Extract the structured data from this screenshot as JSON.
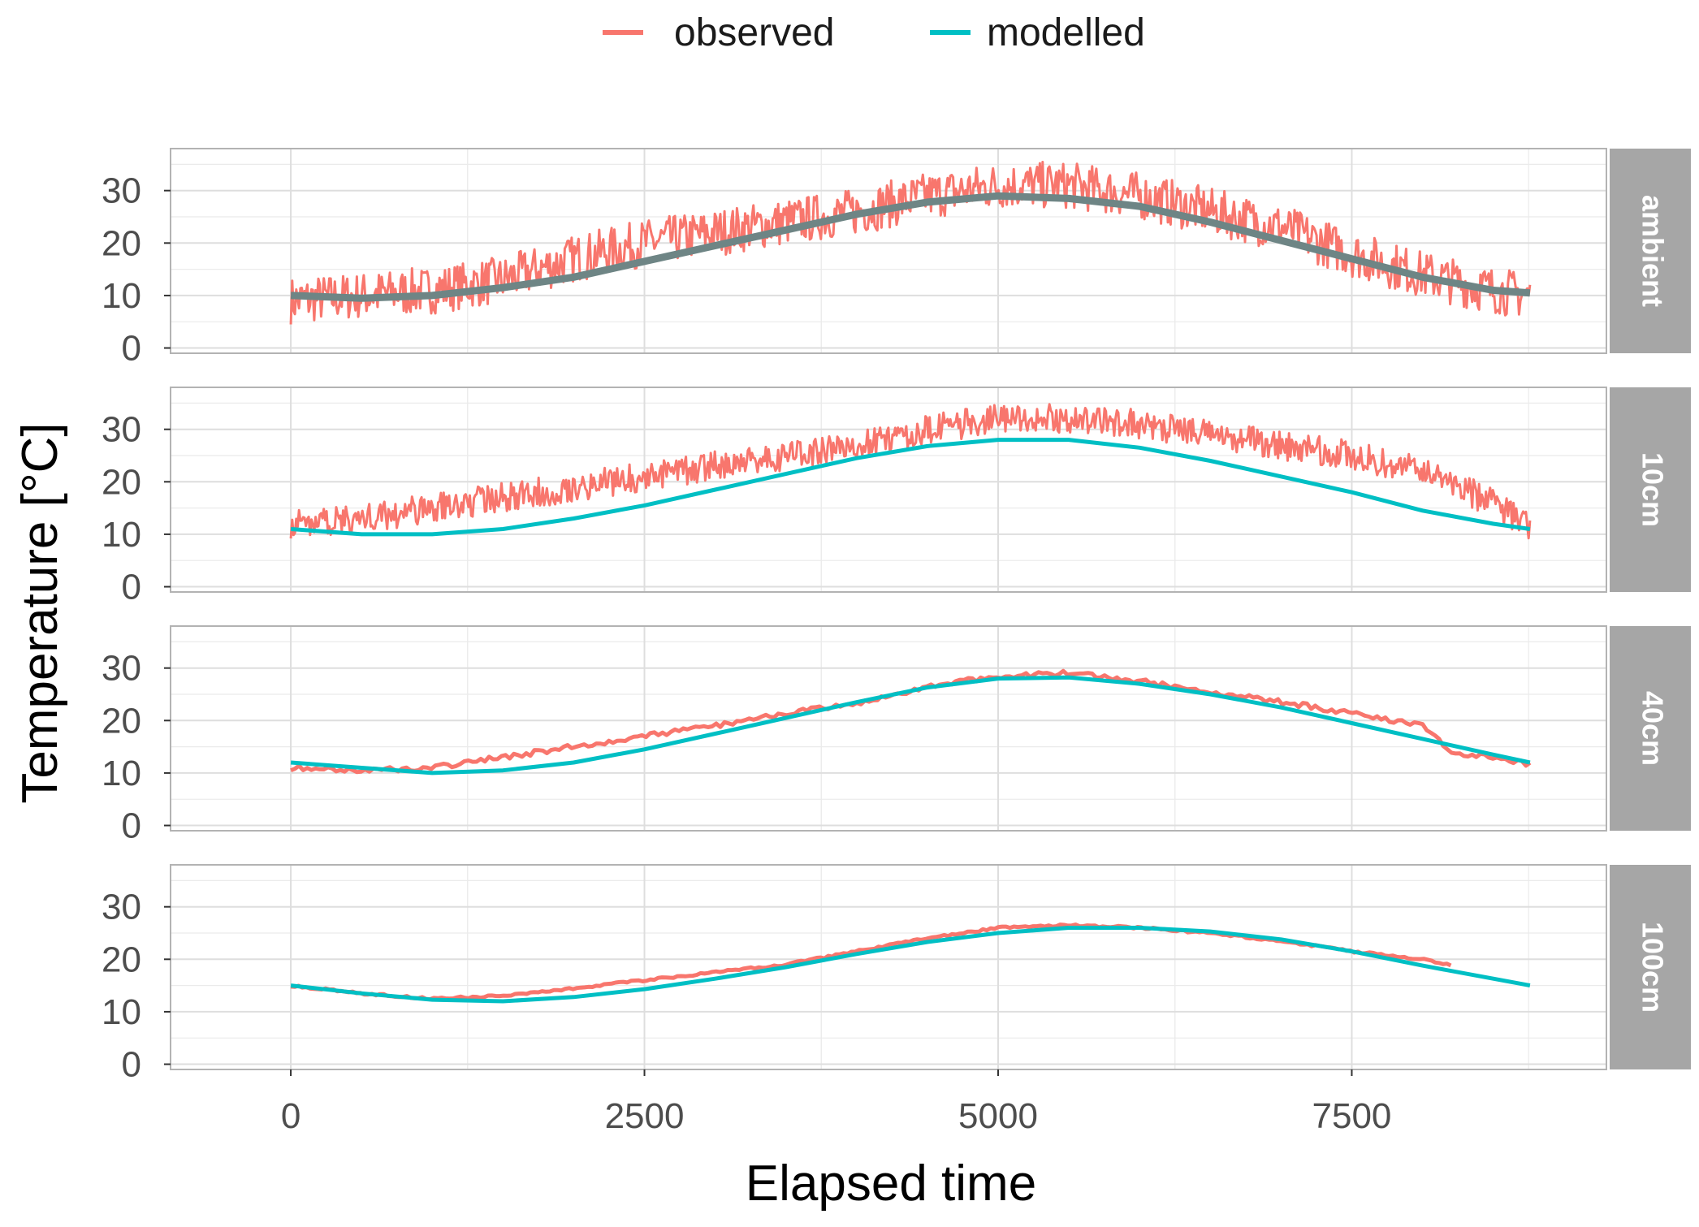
{
  "chart_data": {
    "type": "line",
    "xlabel": "Elapsed time",
    "ylabel": "Temperature [°C]",
    "xlim": [
      -850,
      9300
    ],
    "ylim": [
      -1,
      38
    ],
    "x_ticks": [
      0,
      2500,
      5000,
      7500
    ],
    "x_tick_labels": [
      "0",
      "2500",
      "5000",
      "7500"
    ],
    "y_ticks": [
      0,
      10,
      20,
      30
    ],
    "y_tick_labels": [
      "0",
      "10",
      "20",
      "30"
    ],
    "grid": true,
    "legend": {
      "position": "top",
      "entries": [
        {
          "label": "observed",
          "color": "#f8766d"
        },
        {
          "label": "modelled",
          "color": "#00bfc4"
        }
      ]
    },
    "colors": {
      "observed": "#f8766d",
      "modelled": "#00bfc4",
      "strip": "#a6a6a6",
      "grid": "#ebebeb",
      "panel_border": "#b3b3b3"
    },
    "panels": [
      {
        "label": "ambient",
        "noise_amplitude": 4.5,
        "observed": {
          "x": [
            0,
            500,
            1000,
            1500,
            2000,
            2500,
            3000,
            3500,
            4000,
            4500,
            5000,
            5500,
            6000,
            6500,
            7000,
            7500,
            8000,
            8500,
            8760
          ],
          "y": [
            9,
            10,
            11,
            13,
            17,
            20,
            22,
            24,
            26,
            29,
            31,
            31,
            29,
            26,
            23,
            18,
            14,
            11,
            10
          ]
        },
        "modelled": {
          "x": [
            0,
            500,
            1000,
            1500,
            2000,
            2500,
            3000,
            3500,
            4000,
            4500,
            5000,
            5500,
            6000,
            6500,
            7000,
            7500,
            8000,
            8500,
            8760
          ],
          "y": [
            10,
            9.5,
            10,
            11.5,
            13.5,
            16.5,
            19.5,
            22.5,
            25.5,
            27.8,
            29,
            28.5,
            27,
            24,
            20.5,
            17,
            13.5,
            11,
            10.5
          ]
        }
      },
      {
        "label": "10cm",
        "noise_amplitude": 2.8,
        "observed": {
          "x": [
            0,
            500,
            1000,
            1500,
            2000,
            2500,
            3000,
            3500,
            4000,
            4500,
            5000,
            5500,
            6000,
            6500,
            7000,
            7500,
            8000,
            8500,
            8760
          ],
          "y": [
            12,
            13,
            15,
            17,
            19,
            21,
            23,
            25,
            27,
            30,
            32,
            32,
            31,
            29,
            27,
            25,
            22,
            16,
            11
          ]
        },
        "modelled": {
          "x": [
            0,
            500,
            1000,
            1500,
            2000,
            2500,
            3000,
            3500,
            4000,
            4500,
            5000,
            5500,
            6000,
            6500,
            7000,
            7500,
            8000,
            8500,
            8760
          ],
          "y": [
            11,
            10,
            10,
            11,
            13,
            15.5,
            18.5,
            21.5,
            24.5,
            26.8,
            28,
            28,
            26.5,
            24,
            21,
            18,
            14.5,
            12,
            11
          ]
        }
      },
      {
        "label": "40cm",
        "noise_amplitude": 0.5,
        "observed": {
          "x": [
            0,
            500,
            1000,
            1500,
            2000,
            2500,
            3000,
            3500,
            4000,
            4500,
            5000,
            5500,
            6000,
            6500,
            7000,
            7500,
            8000,
            8200,
            8500,
            8760
          ],
          "y": [
            11,
            10.5,
            11,
            13,
            15,
            17,
            19,
            21.5,
            23,
            26.5,
            28.5,
            29,
            27.5,
            25.5,
            23.5,
            21.5,
            19,
            14,
            13,
            11.5
          ]
        },
        "modelled": {
          "x": [
            0,
            500,
            1000,
            1500,
            2000,
            2500,
            3000,
            3500,
            4000,
            4500,
            5000,
            5500,
            6000,
            6500,
            7000,
            7500,
            8000,
            8500,
            8760
          ],
          "y": [
            12,
            11,
            10,
            10.5,
            12,
            14.5,
            17.5,
            20.5,
            23.5,
            26.3,
            28,
            28.2,
            27,
            25,
            22.5,
            19.5,
            16.5,
            13.5,
            12
          ]
        }
      },
      {
        "label": "100cm",
        "noise_amplitude": 0.2,
        "observed": {
          "x": [
            0,
            500,
            1000,
            1500,
            2000,
            2500,
            3000,
            3500,
            4000,
            4500,
            5000,
            5500,
            6000,
            6500,
            7000,
            7500,
            8000,
            8200
          ],
          "y": [
            15,
            13.5,
            12.5,
            13,
            14.5,
            16,
            17.5,
            19,
            21.5,
            24,
            26,
            26.5,
            26,
            25,
            23.5,
            21.5,
            20,
            19
          ]
        },
        "modelled": {
          "x": [
            0,
            500,
            1000,
            1500,
            2000,
            2500,
            3000,
            3500,
            4000,
            4500,
            5000,
            5500,
            6000,
            6500,
            7000,
            7500,
            8000,
            8500,
            8760
          ],
          "y": [
            15,
            13.5,
            12.3,
            12,
            12.8,
            14.3,
            16.3,
            18.5,
            21,
            23.3,
            25,
            26,
            26,
            25.3,
            23.8,
            21.5,
            18.8,
            16.3,
            15
          ]
        }
      }
    ]
  }
}
